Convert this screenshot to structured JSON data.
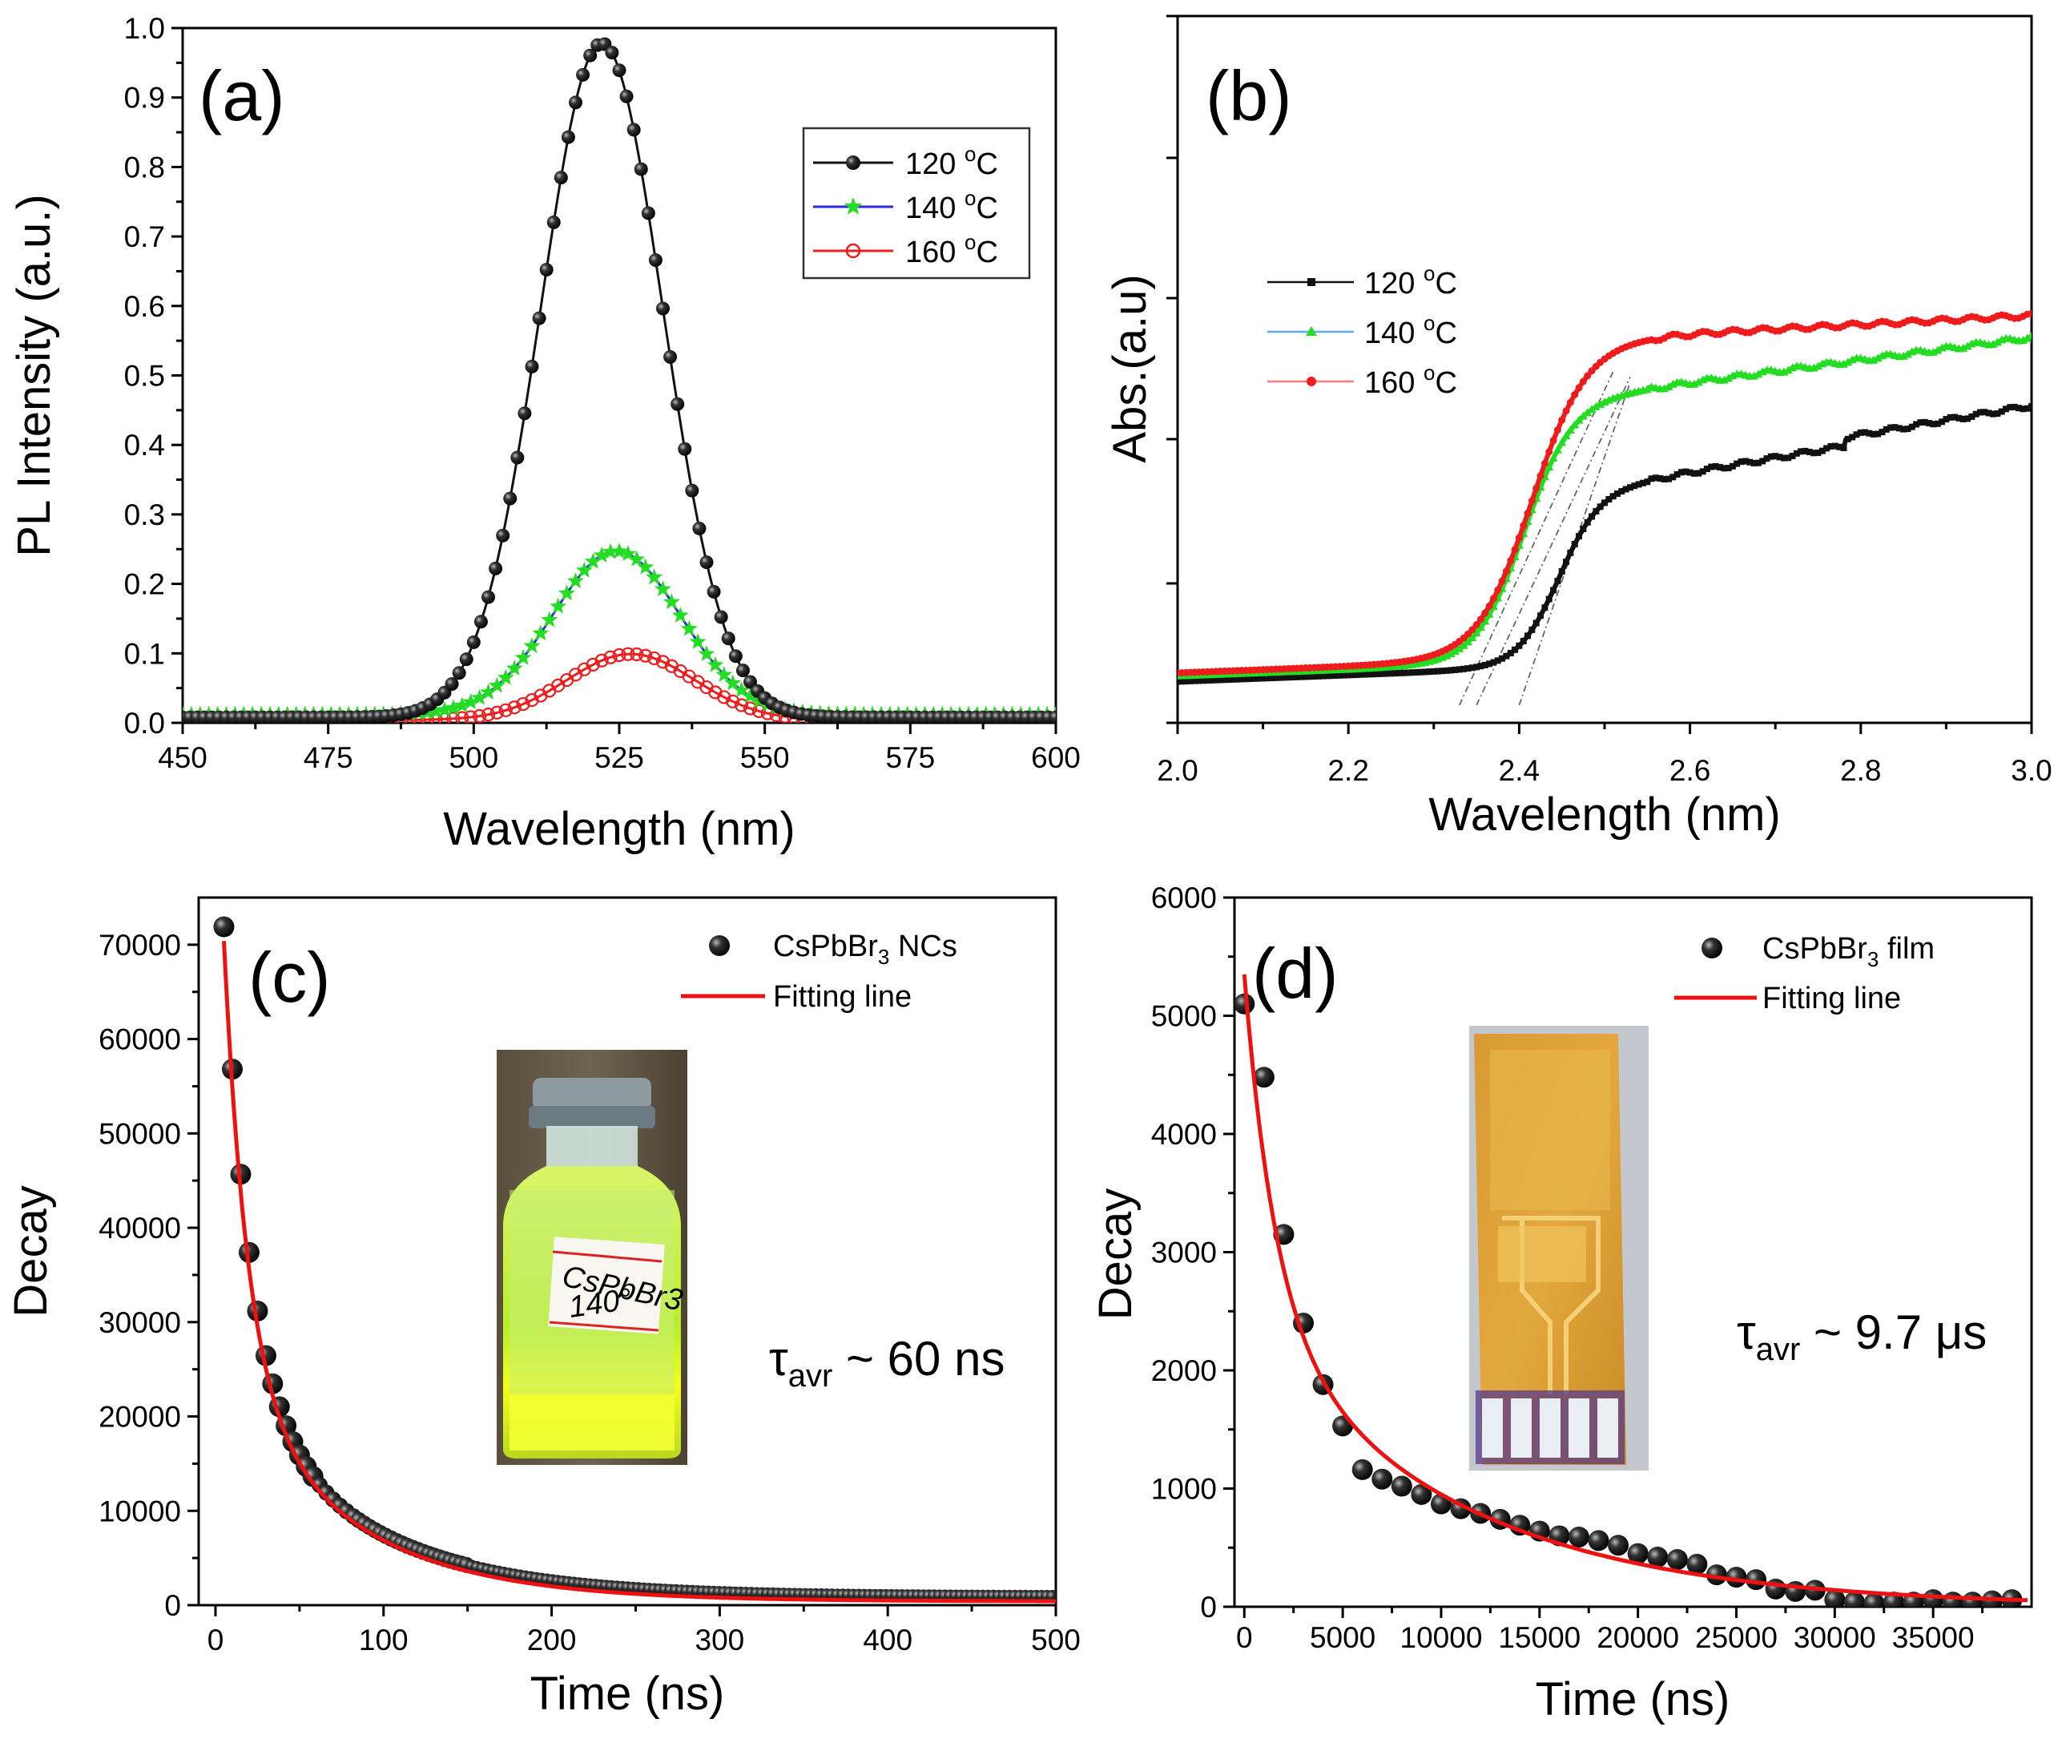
{
  "colors": {
    "black": "#111111",
    "green": "#22dd22",
    "blue": "#2a2ad8",
    "red": "#ee1c1c",
    "fit_red": "#ee1111"
  },
  "chart_data": [
    {
      "panel": "(a)",
      "type": "line",
      "xlabel": "Wavelength (nm)",
      "ylabel": "PL Intensity (a.u.)",
      "xlim": [
        450,
        600
      ],
      "ylim": [
        0,
        1.0
      ],
      "xticks": [
        "450",
        "475",
        "500",
        "525",
        "550",
        "575",
        "600"
      ],
      "yticks": [
        "0.0",
        "0.1",
        "0.2",
        "0.3",
        "0.4",
        "0.5",
        "0.6",
        "0.7",
        "0.8",
        "0.9",
        "1.0"
      ],
      "legend_position": "top-right",
      "legend": [
        "120 °C",
        "140 °C",
        "160 °C"
      ],
      "legend_base": [
        "120 ",
        "140 ",
        "160 "
      ],
      "legend_sup": "o",
      "legend_unit": "C",
      "series": [
        {
          "name": "120 °C",
          "model": "gauss",
          "peak_x": 522,
          "peak_y": 0.97,
          "sigma": 10.5,
          "baseline": 0.008,
          "color": "black",
          "marker": "filled-circle"
        },
        {
          "name": "140 °C",
          "model": "gauss",
          "peak_x": 524.5,
          "peak_y": 0.235,
          "sigma": 11,
          "baseline": 0.012,
          "color": "green",
          "marker": "star"
        },
        {
          "name": "160 °C",
          "model": "gauss",
          "peak_x": 527,
          "peak_y": 0.095,
          "sigma": 11,
          "baseline": 0.004,
          "color": "red",
          "marker": "open-circle"
        }
      ]
    },
    {
      "panel": "(b)",
      "type": "line",
      "xlabel": "Wavelength (nm)",
      "ylabel": "Abs.(a.u)",
      "xlim": [
        2.0,
        3.0
      ],
      "ylim": [
        0,
        5.1
      ],
      "xticks": [
        "2.0",
        "2.2",
        "2.4",
        "2.6",
        "2.8",
        "3.0"
      ],
      "yticks": [
        "",
        "",
        "",
        "",
        "",
        ""
      ],
      "legend_position": "upper-left",
      "legend": [
        "120 °C",
        "140 °C",
        "160 °C"
      ],
      "legend_base": [
        "120 ",
        "140 ",
        "160 "
      ],
      "legend_sup": "o",
      "legend_unit": "C",
      "tangent_lines": [
        {
          "x": [
            2.33,
            2.51
          ],
          "y": [
            0.0,
            3.1
          ]
        },
        {
          "x": [
            2.35,
            2.53
          ],
          "y": [
            0.0,
            3.05
          ]
        },
        {
          "x": [
            2.4,
            2.53
          ],
          "y": [
            0.0,
            3.0
          ]
        }
      ],
      "series": [
        {
          "name": "120 °C",
          "model": "sigmoid",
          "base": 0.22,
          "slope": 0.3,
          "edge": 2.445,
          "width": 0.024,
          "step": 1.6,
          "tail": 1.05,
          "color": "black",
          "marker": "square"
        },
        {
          "name": "140 °C",
          "model": "sigmoid",
          "base": 0.27,
          "slope": 0.3,
          "edge": 2.405,
          "width": 0.028,
          "step": 2.4,
          "tail": 0.75,
          "color": "green",
          "marker": "triangle"
        },
        {
          "name": "160 °C",
          "model": "sigmoid",
          "base": 0.3,
          "slope": 0.3,
          "edge": 2.415,
          "width": 0.032,
          "step": 2.95,
          "tail": 0.12,
          "color": "red",
          "marker": "dot"
        }
      ]
    },
    {
      "panel": "(c)",
      "type": "scatter",
      "xlabel": "Time (ns)",
      "ylabel": "Decay",
      "xlim": [
        -10,
        500
      ],
      "ylim": [
        0,
        75000
      ],
      "xticks": [
        "0",
        "100",
        "200",
        "300",
        "400",
        "500"
      ],
      "yticks": [
        "0",
        "10000",
        "20000",
        "30000",
        "40000",
        "50000",
        "60000",
        "70000"
      ],
      "legend_position": "top-right",
      "legend": [
        "CsPbBr3 NCs",
        "Fitting line"
      ],
      "legend_scatter": {
        "prefix": "CsPbBr",
        "sub": "3",
        "suffix": " NCs"
      },
      "legend_fit": "Fitting line",
      "annotation": {
        "tau": "τ",
        "sub": "avr",
        "rest": " ~ 60 ns"
      },
      "inset": "vial photo labelled CsPbBr3 140°",
      "inset_label_1": "CsPbBr3",
      "inset_label_2": "140°",
      "series": [
        {
          "name": "CsPbBr3 NCs",
          "model": "biexp",
          "a1": 48000,
          "t1": 15,
          "a2": 23000,
          "t2": 75,
          "c": 900,
          "x0": 5,
          "x1": 500,
          "color": "black",
          "marker": "ball"
        },
        {
          "name": "Fitting line",
          "model": "biexp",
          "a1": 46000,
          "t1": 14,
          "a2": 24000,
          "t2": 72,
          "c": 400,
          "x0": 5,
          "x1": 500,
          "color": "fit_red"
        }
      ]
    },
    {
      "panel": "(d)",
      "type": "scatter",
      "xlabel": "Time (ns)",
      "ylabel": "Decay",
      "xlim": [
        -500,
        40000
      ],
      "ylim": [
        0,
        6000
      ],
      "xticks": [
        "0",
        "5000",
        "10000",
        "15000",
        "20000",
        "25000",
        "30000",
        "35000"
      ],
      "yticks": [
        "0",
        "1000",
        "2000",
        "3000",
        "4000",
        "5000",
        "6000"
      ],
      "legend_position": "top-right",
      "legend": [
        "CsPbBr3 film",
        "Fitting line"
      ],
      "legend_scatter": {
        "prefix": "CsPbBr",
        "sub": "3",
        "suffix": " film"
      },
      "legend_fit": "Fitting line",
      "annotation": {
        "tau": "τ",
        "sub": "avr",
        "rest": " ~ 9.7  μs"
      },
      "inset": "photo of film on patterned substrate",
      "points": [
        [
          0,
          5100
        ],
        [
          1000,
          4480
        ],
        [
          2000,
          3150
        ],
        [
          3000,
          2400
        ],
        [
          4000,
          1880
        ],
        [
          5000,
          1530
        ],
        [
          6000,
          1160
        ],
        [
          7000,
          1080
        ],
        [
          8000,
          1020
        ],
        [
          9000,
          950
        ],
        [
          10000,
          870
        ],
        [
          11000,
          830
        ],
        [
          12000,
          790
        ],
        [
          13000,
          740
        ],
        [
          14000,
          690
        ],
        [
          15000,
          640
        ],
        [
          16000,
          600
        ],
        [
          17000,
          590
        ],
        [
          18000,
          560
        ],
        [
          19000,
          520
        ],
        [
          20000,
          450
        ],
        [
          21000,
          420
        ],
        [
          22000,
          400
        ],
        [
          23000,
          360
        ],
        [
          24000,
          270
        ],
        [
          25000,
          250
        ],
        [
          26000,
          230
        ],
        [
          27000,
          150
        ],
        [
          28000,
          130
        ],
        [
          29000,
          140
        ],
        [
          30000,
          60
        ],
        [
          31000,
          40
        ],
        [
          32000,
          30
        ],
        [
          33000,
          40
        ],
        [
          34000,
          40
        ],
        [
          35000,
          60
        ],
        [
          36000,
          40
        ],
        [
          37000,
          40
        ],
        [
          38000,
          50
        ],
        [
          39000,
          60
        ]
      ],
      "series": [
        {
          "name": "Fitting line",
          "model": "biexp",
          "a1": 2900,
          "t1": 1600,
          "a2": 2450,
          "t2": 10500,
          "c": 0,
          "x0": 0,
          "x1": 39800,
          "color": "fit_red"
        }
      ]
    }
  ]
}
